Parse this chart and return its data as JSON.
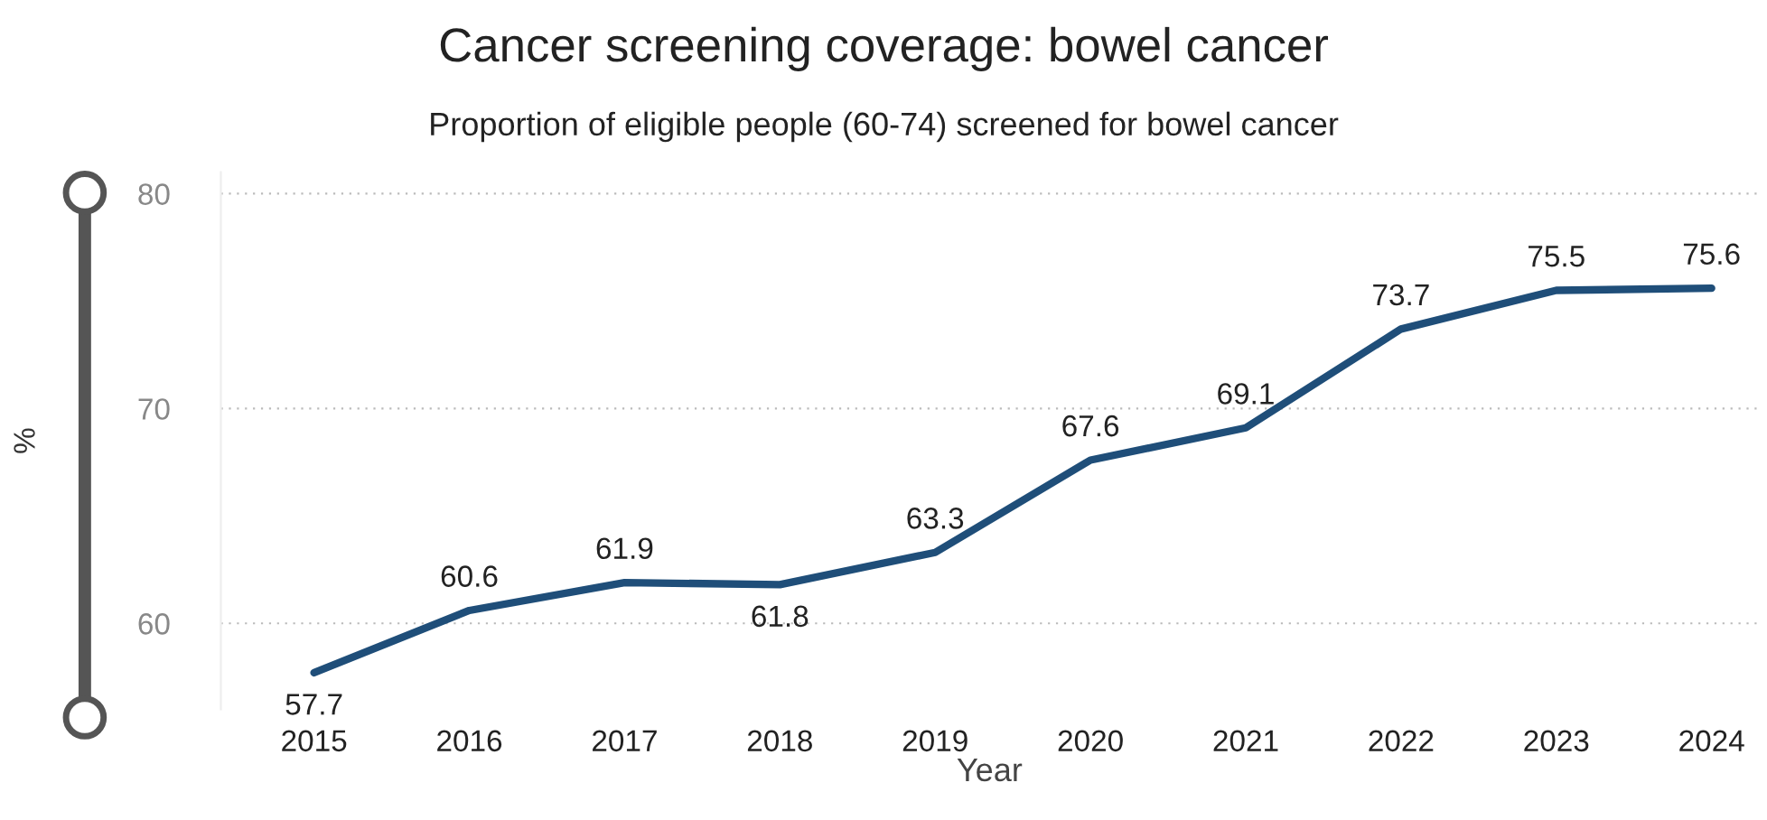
{
  "chart_data": {
    "type": "line",
    "title": "Cancer screening coverage: bowel cancer",
    "subtitle": "Proportion of eligible people (60-74) screened for bowel cancer",
    "xlabel": "Year",
    "ylabel": "%",
    "categories": [
      "2015",
      "2016",
      "2017",
      "2018",
      "2019",
      "2020",
      "2021",
      "2022",
      "2023",
      "2024"
    ],
    "series": [
      {
        "color": "#1f4e79",
        "values": [
          57.7,
          60.6,
          61.9,
          61.8,
          63.3,
          67.6,
          69.1,
          73.7,
          75.5,
          75.6
        ]
      }
    ],
    "ylim": [
      56,
      81
    ],
    "yticks": [
      60,
      70,
      80
    ],
    "grid": "y",
    "data_labels": true,
    "marker": "none",
    "line_style": "solid",
    "legend": false
  }
}
